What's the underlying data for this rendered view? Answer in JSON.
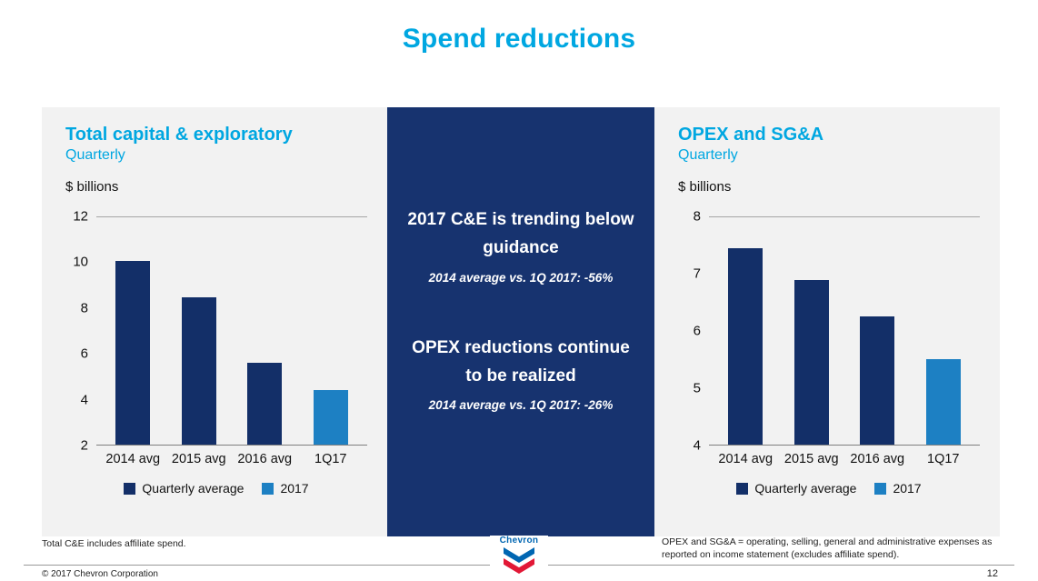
{
  "title": "Spend reductions",
  "colors": {
    "accent_cyan": "#00a7e1",
    "navy": "#132f68",
    "light_blue": "#1d80c3",
    "panel_gray": "#f2f2f2",
    "callout_navy": "#17336f",
    "logo_blue": "#0066b2",
    "logo_red": "#e21836"
  },
  "chart_data": [
    {
      "type": "bar",
      "title": "Total capital & exploratory",
      "subtitle": "Quarterly",
      "ylabel": "$ billions",
      "categories": [
        "2014 avg",
        "2015 avg",
        "2016 avg",
        "1Q17"
      ],
      "values": [
        10.1,
        8.5,
        5.6,
        4.4
      ],
      "bar_colors": [
        "#132f68",
        "#132f68",
        "#132f68",
        "#1d80c3"
      ],
      "ylim": [
        2,
        12
      ],
      "yticks": [
        12,
        10,
        8,
        6,
        4,
        2
      ],
      "grid": "top and baseline only",
      "legend_position": "bottom",
      "legend": [
        {
          "label": "Quarterly average",
          "color": "#132f68"
        },
        {
          "label": "2017",
          "color": "#1d80c3"
        }
      ]
    },
    {
      "type": "bar",
      "title": "OPEX and SG&A",
      "subtitle": "Quarterly",
      "ylabel": "$ billions",
      "categories": [
        "2014 avg",
        "2015 avg",
        "2016 avg",
        "1Q17"
      ],
      "values": [
        7.45,
        6.9,
        6.25,
        5.5
      ],
      "bar_colors": [
        "#132f68",
        "#132f68",
        "#132f68",
        "#1d80c3"
      ],
      "ylim": [
        4,
        8
      ],
      "yticks": [
        8,
        7,
        6,
        5,
        4
      ],
      "grid": "top and baseline only",
      "legend_position": "bottom",
      "legend": [
        {
          "label": "Quarterly average",
          "color": "#132f68"
        },
        {
          "label": "2017",
          "color": "#1d80c3"
        }
      ]
    }
  ],
  "callout": {
    "items": [
      {
        "heading": "2017 C&E is trending below guidance",
        "detail": "2014 average vs. 1Q 2017: -56%"
      },
      {
        "heading": "OPEX reductions continue to be realized",
        "detail": "2014 average vs. 1Q 2017: -26%"
      }
    ]
  },
  "footnotes": {
    "left": "Total C&E includes affiliate spend.",
    "right": "OPEX and SG&A = operating, selling, general and administrative expenses as reported on income statement (excludes affiliate spend)."
  },
  "footer": {
    "copyright": "© 2017 Chevron Corporation",
    "page_number": "12",
    "logo_text": "Chevron"
  }
}
